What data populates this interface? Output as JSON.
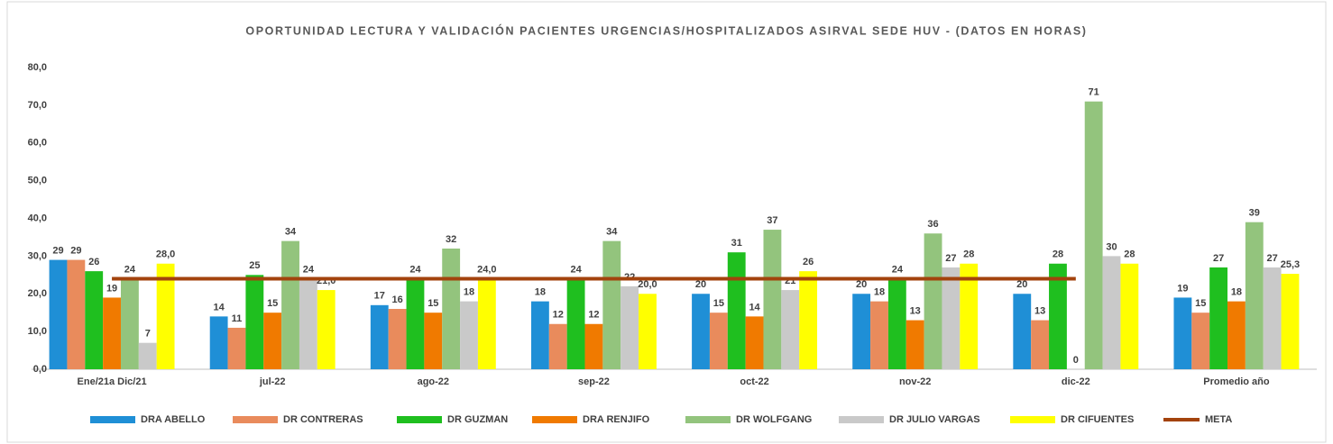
{
  "chart_data": {
    "type": "bar",
    "title": "OPORTUNIDAD LECTURA Y VALIDACIÓN PACIENTES URGENCIAS/HOSPITALIZADOS ASIRVAL SEDE HUV - (DATOS EN HORAS)",
    "categories": [
      "Ene/21a Dic/21",
      "jul-22",
      "ago-22",
      "sep-22",
      "oct-22",
      "nov-22",
      "dic-22",
      "Promedio año"
    ],
    "series": [
      {
        "name": "DRA ABELLO",
        "color": "#1f8fd6",
        "values": [
          29,
          14,
          17,
          18,
          20,
          20,
          20,
          19
        ]
      },
      {
        "name": "DR CONTRERAS",
        "color": "#e98b5c",
        "values": [
          29,
          11,
          16,
          12,
          15,
          18,
          13,
          15
        ]
      },
      {
        "name": "DR GUZMAN",
        "color": "#1fbf1f",
        "values": [
          26,
          25,
          24,
          24,
          31,
          24,
          28,
          27
        ]
      },
      {
        "name": "DRA RENJIFO",
        "color": "#f07a00",
        "values": [
          19,
          15,
          15,
          12,
          14,
          13,
          0,
          18
        ]
      },
      {
        "name": "DR WOLFGANG",
        "color": "#93c47d",
        "values": [
          24,
          34,
          32,
          34,
          37,
          36,
          71,
          39
        ]
      },
      {
        "name": "DR JULIO VARGAS",
        "color": "#c9c9c9",
        "values": [
          7,
          24,
          18,
          22,
          21,
          27,
          30,
          27
        ]
      },
      {
        "name": "DR CIFUENTES",
        "color": "#ffff00",
        "values": [
          28,
          21,
          24,
          20,
          26,
          28,
          28,
          25.3
        ],
        "value_labels": [
          "28,0",
          "21,0",
          "24,0",
          "20,0",
          "26",
          "28",
          "28",
          "25,3"
        ]
      },
      {
        "name": "META",
        "color": "#a3430d",
        "type": "line",
        "values": [
          24,
          24,
          24,
          24,
          24,
          24,
          24,
          null
        ]
      }
    ],
    "ylim": [
      0,
      80
    ],
    "yticks": [
      {
        "value": 0,
        "label": "0,0"
      },
      {
        "value": 10,
        "label": "10,0"
      },
      {
        "value": 20,
        "label": "20,0"
      },
      {
        "value": 30,
        "label": "30,0"
      },
      {
        "value": 40,
        "label": "40,0"
      },
      {
        "value": 50,
        "label": "50,0"
      },
      {
        "value": 60,
        "label": "60,0"
      },
      {
        "value": 70,
        "label": "70,0"
      },
      {
        "value": 80,
        "label": "80,0"
      }
    ],
    "legend": "bottom"
  }
}
